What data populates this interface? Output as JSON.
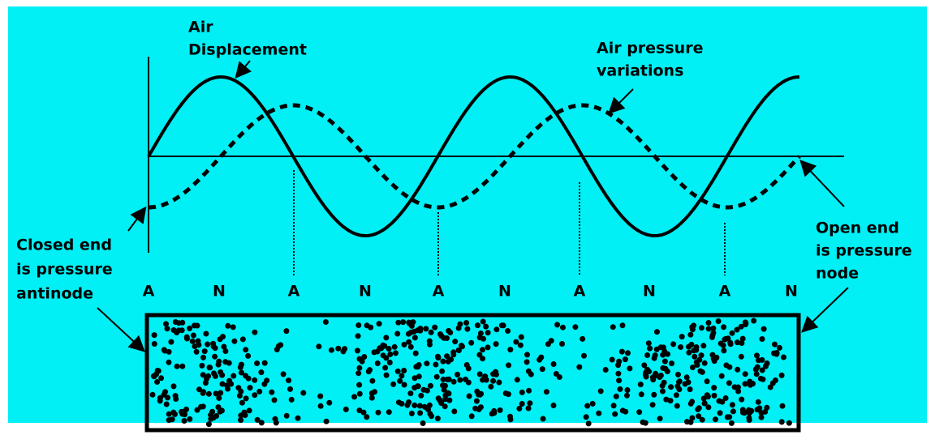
{
  "displacement_label": [
    "Air",
    "Displacement"
  ],
  "pressure_label": [
    "Air pressure",
    "variations"
  ],
  "closed_end_label": [
    "Closed end",
    "is pressure",
    "antinode"
  ],
  "open_end_label": [
    "Open end",
    "is pressure",
    "node"
  ],
  "node_labels": [
    "A",
    "N",
    "A",
    "N",
    "A",
    "N",
    "A",
    "N",
    "A",
    "N"
  ]
}
